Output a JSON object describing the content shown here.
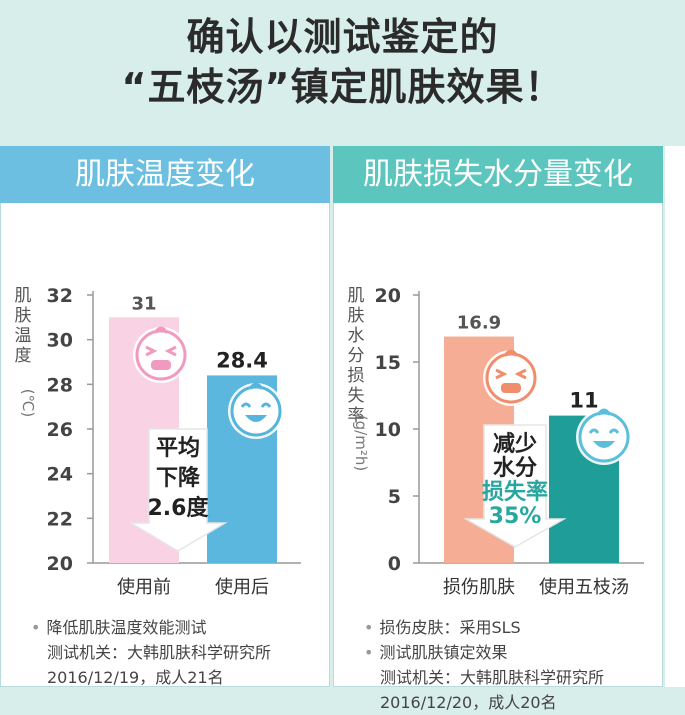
{
  "headline": {
    "line1": "确认以测试鉴定的",
    "line2": "“五枝汤”镇定肌肤效果！"
  },
  "left_panel": {
    "title": "肌肤温度变化",
    "ylabel_chars": [
      "肌",
      "肤",
      "温",
      "度"
    ],
    "unit": "(℃)",
    "arrow_text": [
      "平均",
      "下降",
      "2.6度"
    ],
    "notes": {
      "bullet": "降低肌肤温度效能测试",
      "line2": "测试机关：大韩肌肤科学研究所",
      "line3": "2016/12/19，成人21名"
    }
  },
  "right_panel": {
    "title": "肌肤损失水分量变化",
    "ylabel_chars": [
      "肌",
      "肤",
      "水",
      "分",
      "损",
      "失",
      "率"
    ],
    "unit": "(g/m²h)",
    "arrow_text": [
      "减少",
      "水分",
      "损失率",
      "35%"
    ],
    "notes": {
      "bullet1": "损伤皮肤：采用SLS",
      "bullet2": "测试肌肤镇定效果",
      "line3": "测试机关：大韩肌肤科学研究所",
      "line4": "2016/12/20，成人20名"
    }
  },
  "chart_data": [
    {
      "type": "bar",
      "categories": [
        "使用前",
        "使用后"
      ],
      "values": [
        31,
        28.4
      ],
      "value_labels": [
        "31",
        "28.4"
      ],
      "ylim": [
        20,
        32
      ],
      "yticks": [
        20,
        22,
        24,
        26,
        28,
        30,
        32
      ],
      "colors": [
        "#f9d3e4",
        "#5bb7de"
      ]
    },
    {
      "type": "bar",
      "categories": [
        "损伤肌肤",
        "使用五枝汤"
      ],
      "values": [
        16.9,
        11
      ],
      "value_labels": [
        "16.9",
        "11"
      ],
      "ylim": [
        0,
        20
      ],
      "yticks": [
        0,
        5,
        10,
        15,
        20
      ],
      "colors": [
        "#f6ad95",
        "#1f9e99"
      ]
    }
  ]
}
